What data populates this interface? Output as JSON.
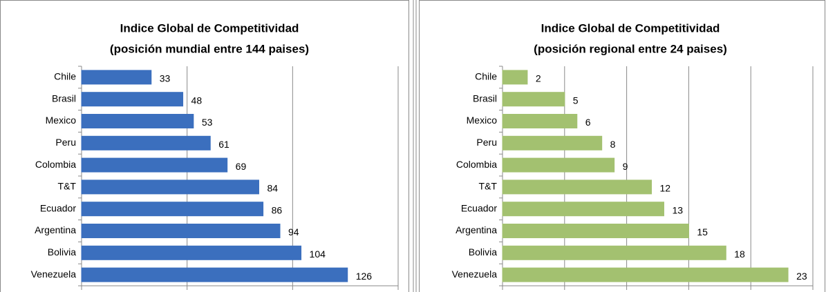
{
  "chart_data": [
    {
      "type": "bar",
      "orientation": "horizontal",
      "title": "Indice Global de Competitividad",
      "subtitle": "(posición mundial entre 144 paises)",
      "categories": [
        "Chile",
        "Brasil",
        "Mexico",
        "Peru",
        "Colombia",
        "T&T",
        "Ecuador",
        "Argentina",
        "Bolivia",
        "Venezuela"
      ],
      "values": [
        33,
        48,
        53,
        61,
        69,
        84,
        86,
        94,
        104,
        126
      ],
      "color": "#3b6fbe",
      "xlim": [
        0,
        150
      ],
      "xticks": [
        0,
        50,
        100,
        150
      ],
      "grid": true
    },
    {
      "type": "bar",
      "orientation": "horizontal",
      "title": "Indice Global de Competitividad",
      "subtitle": "(posición regional entre 24 paises)",
      "categories": [
        "Chile",
        "Brasil",
        "Mexico",
        "Peru",
        "Colombia",
        "T&T",
        "Ecuador",
        "Argentina",
        "Bolivia",
        "Venezuela"
      ],
      "values": [
        2,
        5,
        6,
        8,
        9,
        12,
        13,
        15,
        18,
        23
      ],
      "color": "#a3c170",
      "xlim": [
        0,
        25
      ],
      "xticks": [
        0,
        5,
        10,
        15,
        20,
        25
      ],
      "grid": true
    }
  ]
}
